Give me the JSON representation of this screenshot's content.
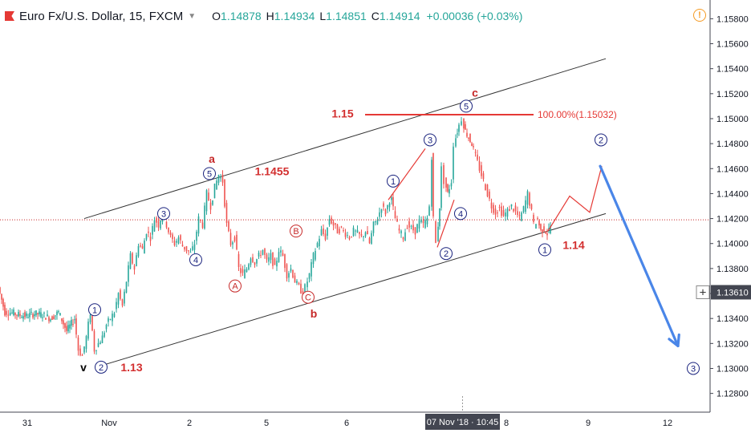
{
  "header": {
    "symbol": "Euro Fx/U.S. Dollar, 15, FXCM",
    "open_label": "O",
    "open": "1.14878",
    "high_label": "H",
    "high": "1.14934",
    "low_label": "L",
    "low": "1.14851",
    "close_label": "C",
    "close": "1.14914",
    "change": "+0.00036 (+0.03%)"
  },
  "colors": {
    "up": "#26a69a",
    "down": "#ef5350",
    "wave": "#1a237e",
    "annot": "#c62828",
    "arrow": "#4a86e8"
  },
  "chart_data": {
    "type": "line",
    "title": "",
    "xlabel": "",
    "ylabel": "",
    "x_ticks": [
      "31",
      "Nov",
      "2",
      "5",
      "6",
      "07 Nov '18 · 10:45",
      "8",
      "9",
      "12"
    ],
    "y_ticks": [
      "1.15800",
      "1.15600",
      "1.15400",
      "1.15200",
      "1.15000",
      "1.14800",
      "1.14600",
      "1.14400",
      "1.14200",
      "1.14000",
      "1.13800",
      "1.13600",
      "1.13400",
      "1.13200",
      "1.13000",
      "1.12800"
    ],
    "ylim": [
      1.1265,
      1.1595
    ],
    "current_price": "1.13610",
    "series": [
      {
        "x": [
          0,
          8,
          15,
          25,
          35,
          45,
          55,
          65,
          75,
          85,
          95,
          100,
          105,
          110,
          115,
          120,
          125,
          130,
          135,
          140,
          145,
          150,
          155,
          160,
          165,
          170,
          175,
          180,
          185,
          190,
          195,
          200,
          205,
          210,
          215,
          220,
          225,
          230,
          235,
          240,
          245,
          250,
          255,
          260,
          265,
          270,
          275,
          280,
          285,
          290,
          295,
          300,
          305,
          310,
          315,
          320,
          325,
          330,
          335,
          340,
          345,
          350,
          355,
          360,
          365,
          370,
          375,
          380,
          383,
          388,
          393,
          398,
          403,
          408,
          413,
          418,
          423,
          428,
          433,
          438,
          443,
          448,
          453,
          458,
          463,
          468,
          473,
          478,
          483,
          488,
          490,
          495,
          500,
          505,
          510,
          515,
          520,
          525,
          530,
          535,
          538,
          540,
          543,
          546,
          550,
          553,
          556,
          560,
          565,
          568,
          572,
          575,
          578,
          582,
          586,
          590,
          595,
          600,
          605,
          610,
          615,
          620,
          625,
          630,
          635,
          640,
          645,
          650,
          655,
          660,
          665,
          668,
          672,
          676,
          680,
          684,
          688
        ],
        "y": [
          1.1365,
          1.1345,
          1.1345,
          1.1343,
          1.1342,
          1.1344,
          1.1343,
          1.134,
          1.1345,
          1.133,
          1.134,
          1.1315,
          1.131,
          1.1325,
          1.1345,
          1.1315,
          1.132,
          1.1325,
          1.1335,
          1.134,
          1.1345,
          1.136,
          1.135,
          1.137,
          1.139,
          1.138,
          1.14,
          1.1395,
          1.141,
          1.1405,
          1.142,
          1.1415,
          1.1425,
          1.1415,
          1.1405,
          1.14,
          1.1405,
          1.1398,
          1.1395,
          1.1392,
          1.14,
          1.142,
          1.1415,
          1.144,
          1.143,
          1.1445,
          1.1455,
          1.145,
          1.1415,
          1.14,
          1.1405,
          1.138,
          1.1375,
          1.138,
          1.139,
          1.1385,
          1.139,
          1.1395,
          1.1385,
          1.139,
          1.138,
          1.1395,
          1.139,
          1.1375,
          1.138,
          1.137,
          1.1365,
          1.136,
          1.1365,
          1.1375,
          1.139,
          1.14,
          1.141,
          1.1405,
          1.142,
          1.1415,
          1.141,
          1.1412,
          1.1408,
          1.1405,
          1.141,
          1.1408,
          1.1405,
          1.141,
          1.14,
          1.1415,
          1.142,
          1.143,
          1.1425,
          1.1435,
          1.1435,
          1.142,
          1.141,
          1.1405,
          1.1415,
          1.1412,
          1.141,
          1.1418,
          1.1415,
          1.142,
          1.143,
          1.147,
          1.142,
          1.14,
          1.143,
          1.146,
          1.145,
          1.144,
          1.145,
          1.148,
          1.149,
          1.1495,
          1.15,
          1.149,
          1.1485,
          1.148,
          1.147,
          1.146,
          1.145,
          1.144,
          1.143,
          1.1425,
          1.1428,
          1.1422,
          1.1426,
          1.143,
          1.1425,
          1.142,
          1.1428,
          1.144,
          1.1425,
          1.1415,
          1.142,
          1.141,
          1.1412,
          1.1408,
          1.1414
        ]
      },
      {
        "name": "",
        "x": [
          683,
          710,
          735,
          750
        ],
        "y": [
          1.141,
          1.1438,
          1.1425,
          1.1462
        ]
      }
    ],
    "wave_labels": [
      {
        "text": "1",
        "x": 118,
        "y": 1.1347,
        "style": "circle"
      },
      {
        "text": "2",
        "x": 126,
        "y": 1.1301,
        "style": "circle"
      },
      {
        "text": "v",
        "x": 104,
        "y": 1.1301,
        "style": "plain"
      },
      {
        "text": "3",
        "x": 204,
        "y": 1.1424,
        "style": "circle"
      },
      {
        "text": "4",
        "x": 244,
        "y": 1.1387,
        "style": "circle"
      },
      {
        "text": "5",
        "x": 261,
        "y": 1.1456,
        "style": "circle"
      },
      {
        "text": "a",
        "x": 264,
        "y": 1.1468,
        "style": "plain-red"
      },
      {
        "text": "A",
        "x": 293,
        "y": 1.1366,
        "style": "circle-red"
      },
      {
        "text": "B",
        "x": 369,
        "y": 1.141,
        "style": "circle-red"
      },
      {
        "text": "C",
        "x": 384,
        "y": 1.1357,
        "style": "circle-red"
      },
      {
        "text": "b",
        "x": 391,
        "y": 1.1344,
        "style": "plain-red"
      },
      {
        "text": "1",
        "x": 490,
        "y": 1.145,
        "style": "circle"
      },
      {
        "text": "2",
        "x": 556,
        "y": 1.1392,
        "style": "circle"
      },
      {
        "text": "3",
        "x": 536,
        "y": 1.1483,
        "style": "circle"
      },
      {
        "text": "4",
        "x": 574,
        "y": 1.1424,
        "style": "circle"
      },
      {
        "text": "5",
        "x": 581,
        "y": 1.151,
        "style": "circle"
      },
      {
        "text": "c",
        "x": 592,
        "y": 1.1521,
        "style": "plain-red"
      },
      {
        "text": "1",
        "x": 679,
        "y": 1.1395,
        "style": "circle"
      },
      {
        "text": "2",
        "x": 749,
        "y": 1.1483,
        "style": "circle"
      },
      {
        "text": "3",
        "x": 864,
        "y": 1.13,
        "style": "circle"
      }
    ],
    "price_labels": [
      {
        "text": "1.15",
        "x": 427,
        "y": 1.1504
      },
      {
        "text": "1.1455",
        "x": 339,
        "y": 1.1458
      },
      {
        "text": "1.14",
        "x": 715,
        "y": 1.1399
      },
      {
        "text": "1.13",
        "x": 164,
        "y": 1.1301
      }
    ],
    "fib_label": "100.00%(1.15032)",
    "fib_level": 1.15032,
    "channel_upper": [
      [
        105,
        1.142
      ],
      [
        755,
        1.1548
      ]
    ],
    "channel_lower": [
      [
        125,
        1.1302
      ],
      [
        755,
        1.1424
      ]
    ],
    "hline_level": 1.1419,
    "arrow_from": [
      748,
      1.1462
    ],
    "arrow_to": [
      845,
      1.1318
    ]
  }
}
